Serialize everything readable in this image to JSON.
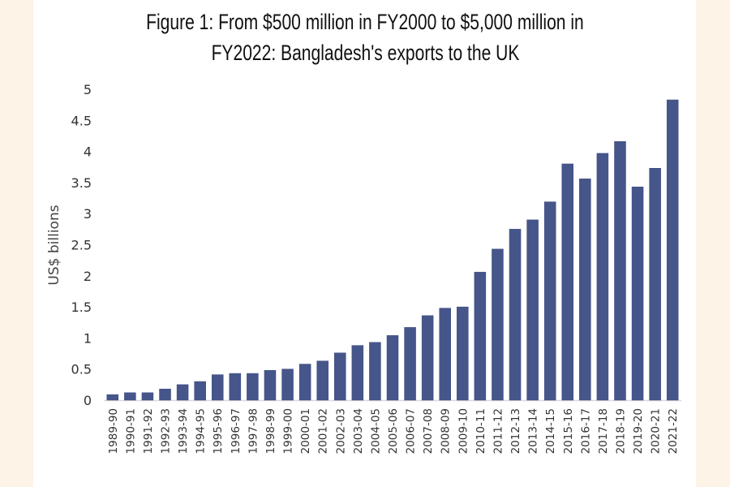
{
  "chart_data": {
    "type": "bar",
    "title_lines": [
      "Figure 1: From $500 million in FY2000 to $5,000 million in",
      "FY2022: Bangladesh's exports to the UK"
    ],
    "xlabel": "",
    "ylabel": "US$ billions",
    "ylim": [
      0,
      5
    ],
    "yticks": [
      "0",
      "0.5",
      "1",
      "1.5",
      "2",
      "2.5",
      "3",
      "3.5",
      "4",
      "4.5",
      "5"
    ],
    "grid": false,
    "bar_color": "#46568a",
    "categories": [
      "1989-90",
      "1990-91",
      "1991-92",
      "1992-93",
      "1993-94",
      "1994-95",
      "1995-96",
      "1996-97",
      "1997-98",
      "1998-99",
      "1999-00",
      "2000-01",
      "2001-02",
      "2002-03",
      "2003-04",
      "2004-05",
      "2005-06",
      "2006-07",
      "2007-08",
      "2008-09",
      "2009-10",
      "2010-11",
      "2011-12",
      "2012-13",
      "2013-14",
      "2014-15",
      "2015-16",
      "2016-17",
      "2017-18",
      "2018-19",
      "2019-20",
      "2020-21",
      "2021-22"
    ],
    "values": [
      0.09,
      0.12,
      0.12,
      0.18,
      0.25,
      0.3,
      0.41,
      0.43,
      0.43,
      0.48,
      0.5,
      0.58,
      0.63,
      0.76,
      0.88,
      0.93,
      1.04,
      1.17,
      1.36,
      1.48,
      1.5,
      2.06,
      2.43,
      2.75,
      2.9,
      3.19,
      3.8,
      3.56,
      3.97,
      4.16,
      3.43,
      3.73,
      4.83
    ]
  }
}
